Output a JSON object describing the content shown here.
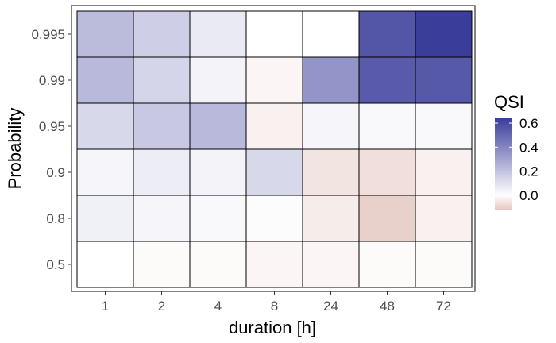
{
  "chart_data": {
    "type": "heatmap",
    "xlabel": "duration [h]",
    "ylabel": "Probability",
    "x_categories": [
      "1",
      "2",
      "4",
      "8",
      "24",
      "48",
      "72"
    ],
    "y_categories": [
      "0.5",
      "0.8",
      "0.9",
      "0.95",
      "0.99",
      "0.995"
    ],
    "values": [
      [
        0.0,
        -0.01,
        -0.01,
        -0.02,
        -0.02,
        -0.01,
        -0.01
      ],
      [
        0.05,
        0.03,
        0.02,
        0.01,
        -0.04,
        -0.1,
        -0.03
      ],
      [
        0.03,
        0.06,
        0.04,
        0.13,
        -0.06,
        -0.07,
        -0.03
      ],
      [
        0.13,
        0.18,
        0.23,
        -0.03,
        0.03,
        0.02,
        0.02
      ],
      [
        0.23,
        0.14,
        0.04,
        -0.02,
        0.35,
        0.54,
        0.55
      ],
      [
        0.22,
        0.16,
        0.07,
        0.0,
        0.0,
        0.56,
        0.64
      ]
    ],
    "legend": {
      "title": "QSI",
      "ticks": [
        "0.6",
        "0.4",
        "0.2",
        "0.0"
      ],
      "tick_values": [
        0.6,
        0.4,
        0.2,
        0.0
      ],
      "range": [
        -0.12,
        0.64
      ],
      "low_color": "#e5c8c0",
      "mid_color": "#ffffff",
      "high_color": "#3a3d9a",
      "placement": "right"
    },
    "grid": false
  }
}
